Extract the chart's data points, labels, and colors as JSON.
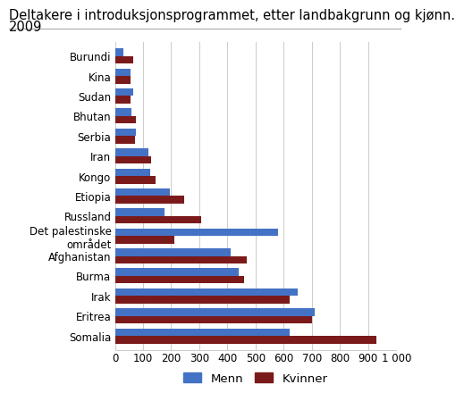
{
  "title_line1": "Deltakere i introduksjonsprogrammet, etter landbakgrunn og kjønn.",
  "title_line2": "2009",
  "categories": [
    "Somalia",
    "Eritrea",
    "Irak",
    "Burma",
    "Afghanistan",
    "Det palestinske\nområdet",
    "Russland",
    "Etiopia",
    "Kongo",
    "Iran",
    "Serbia",
    "Bhutan",
    "Sudan",
    "Kina",
    "Burundi"
  ],
  "menn": [
    620,
    710,
    650,
    440,
    410,
    580,
    175,
    195,
    125,
    120,
    75,
    60,
    65,
    55,
    30
  ],
  "kvinner": [
    930,
    700,
    620,
    460,
    470,
    210,
    305,
    245,
    145,
    130,
    70,
    75,
    55,
    55,
    65
  ],
  "color_menn": "#4472c4",
  "color_kvinner": "#7b1a1a",
  "xlim": [
    0,
    1000
  ],
  "xticks": [
    0,
    100,
    200,
    300,
    400,
    500,
    600,
    700,
    800,
    900,
    1000
  ],
  "xtick_labels": [
    "0",
    "100",
    "200",
    "300",
    "400",
    "500",
    "600",
    "700",
    "800",
    "900",
    "1 000"
  ],
  "legend_labels": [
    "Menn",
    "Kvinner"
  ],
  "bar_height": 0.38,
  "title_fontsize": 10.5,
  "tick_fontsize": 8.5,
  "legend_fontsize": 9.5,
  "grid_color": "#cccccc",
  "bg_color": "#ffffff"
}
